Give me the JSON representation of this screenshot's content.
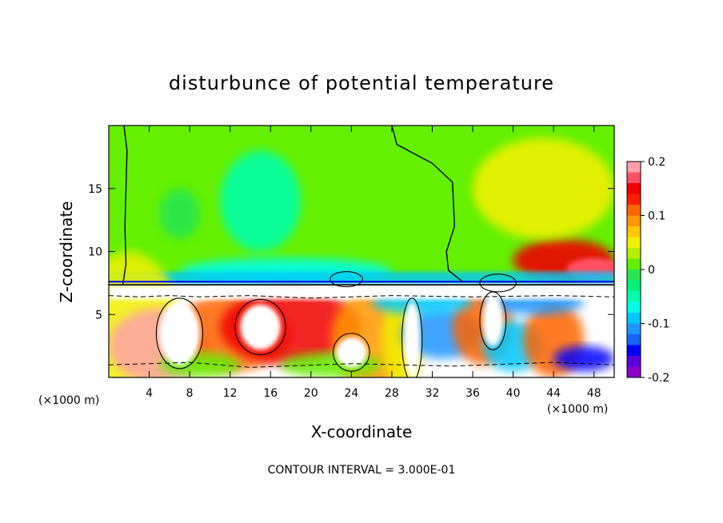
{
  "chart_data": {
    "type": "heatmap",
    "title": "disturbunce of potential temperature",
    "xlabel": "X-coordinate",
    "ylabel": "Z-coordinate",
    "x_unit": "(×1000 m)",
    "x_unit_right": "(×1000 m)",
    "xlim": [
      0,
      50
    ],
    "ylim": [
      0,
      20
    ],
    "x_ticks": [
      4,
      8,
      12,
      16,
      20,
      24,
      28,
      32,
      36,
      40,
      44,
      48
    ],
    "y_ticks": [
      5,
      10,
      15
    ],
    "colorbar": {
      "min": -0.2,
      "max": 0.2,
      "ticks": [
        0.2,
        0.1,
        0,
        -0.1,
        -0.2
      ],
      "tick_labels": [
        "0.2",
        "0.1",
        "0",
        "-0.1",
        "-0.2"
      ],
      "colors": [
        "#8c00c8",
        "#5a00e0",
        "#0000ff",
        "#1464ff",
        "#1e96ff",
        "#00c8ff",
        "#00ffe6",
        "#00ffaa",
        "#00f078",
        "#28e650",
        "#64f000",
        "#b4f000",
        "#f0f000",
        "#ffc800",
        "#ff9600",
        "#ff6400",
        "#ff1e00",
        "#f00000",
        "#ff5064",
        "#ffa0aa"
      ]
    },
    "contour_interval": "CONTOUR INTERVAL = 3.000E-01",
    "field_regions": [
      {
        "x": [
          0,
          50
        ],
        "z": [
          7.5,
          20
        ],
        "value": 0.0
      },
      {
        "x": [
          5,
          9
        ],
        "z": [
          11,
          15
        ],
        "value": -0.02
      },
      {
        "x": [
          11,
          19
        ],
        "z": [
          10,
          18
        ],
        "value": -0.04
      },
      {
        "x": [
          7,
          28
        ],
        "z": [
          7.4,
          9.5
        ],
        "value": -0.08
      },
      {
        "x": [
          40,
          50
        ],
        "z": [
          7.6,
          11
        ],
        "value": 0.14
      },
      {
        "x": [
          36,
          50
        ],
        "z": [
          11,
          19
        ],
        "value": 0.04
      },
      {
        "x": [
          0,
          50
        ],
        "z": [
          0,
          7.3
        ],
        "value": 0.3
      }
    ]
  }
}
